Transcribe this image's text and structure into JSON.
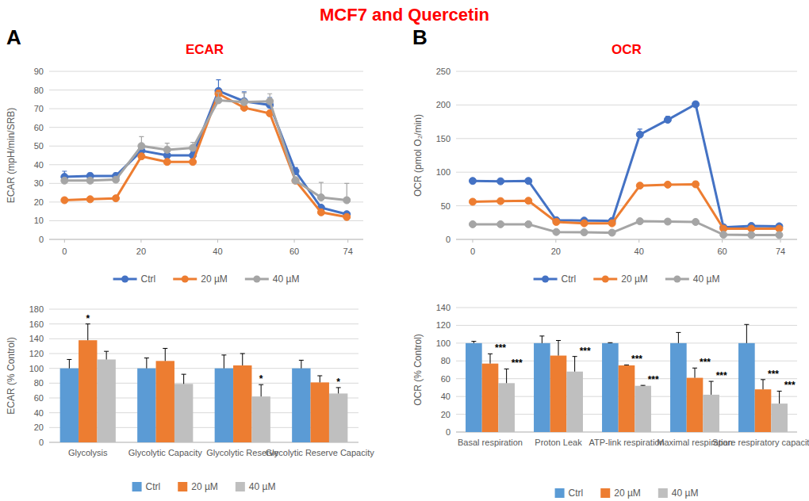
{
  "figure": {
    "title": "MCF7 and Quercetin",
    "panels": [
      {
        "label": "A",
        "title": "ECAR"
      },
      {
        "label": "B",
        "title": "OCR"
      }
    ]
  },
  "chart_data": [
    {
      "type": "line",
      "y_label": "ECAR (mpH/min/SRB)",
      "x": [
        0,
        6.7,
        13.4,
        20.1,
        26.8,
        33.5,
        40.2,
        46.9,
        53.6,
        60.3,
        67,
        73.7
      ],
      "xlim": [
        -4,
        78
      ],
      "xticks": [
        0,
        20,
        40,
        60,
        74
      ],
      "ylim": [
        0,
        90
      ],
      "yticks": [
        0,
        10,
        20,
        30,
        40,
        50,
        60,
        70,
        80,
        90
      ],
      "grid": true,
      "legend": "bottom",
      "marker": "circle",
      "series": [
        {
          "name": "Ctrl",
          "color": "#4472c4",
          "values": [
            33.5,
            34,
            34,
            47.5,
            45,
            45,
            79.5,
            74,
            72,
            36.5,
            17,
            13.5
          ],
          "errors": [
            3,
            1.5,
            1.5,
            2,
            2,
            2,
            6,
            5,
            4,
            2,
            1,
            1
          ]
        },
        {
          "name": "20 µM",
          "color": "#ed7d31",
          "values": [
            21,
            21.5,
            22,
            44.5,
            41.5,
            41.5,
            78,
            70.5,
            67.5,
            31.5,
            14.5,
            12
          ],
          "errors": [
            0.5,
            0.5,
            0.5,
            1,
            1,
            1,
            2,
            1.5,
            1.5,
            1,
            0.5,
            0.5
          ]
        },
        {
          "name": "40 µM",
          "color": "#a5a5a5",
          "values": [
            31.5,
            31.5,
            32,
            50,
            48,
            49,
            74.5,
            73.5,
            74,
            31.5,
            22.5,
            21
          ],
          "errors": [
            1,
            1,
            1,
            5,
            3.5,
            3,
            4,
            5,
            4,
            2,
            8,
            9
          ]
        }
      ]
    },
    {
      "type": "line",
      "y_label": "OCR (pmol O₂/min)",
      "x": [
        0,
        6.7,
        13.4,
        20.1,
        26.8,
        33.5,
        40.2,
        46.9,
        53.6,
        60.3,
        67,
        73.7
      ],
      "xlim": [
        -4,
        78
      ],
      "xticks": [
        0,
        20,
        40,
        60,
        74
      ],
      "ylim": [
        0,
        250
      ],
      "yticks": [
        0,
        50,
        100,
        150,
        200,
        250
      ],
      "grid": true,
      "legend": "bottom",
      "marker": "circle",
      "series": [
        {
          "name": "Ctrl",
          "color": "#4472c4",
          "values": [
            87,
            86.5,
            87,
            28.5,
            28,
            27.5,
            156,
            178,
            201,
            18,
            20,
            19.5
          ],
          "errors": [
            1,
            1,
            1,
            1,
            1,
            1,
            8,
            5,
            3,
            1,
            1,
            1
          ]
        },
        {
          "name": "20 µM",
          "color": "#ed7d31",
          "values": [
            56,
            57,
            57.5,
            26,
            24,
            24,
            80,
            81.5,
            82,
            16,
            16,
            16
          ],
          "errors": [
            1,
            1,
            1,
            1,
            1,
            1,
            4,
            4,
            4,
            1,
            1,
            1
          ]
        },
        {
          "name": "40 µM",
          "color": "#a5a5a5",
          "values": [
            22.5,
            22.5,
            22.5,
            11,
            10.5,
            10,
            27,
            26.5,
            26,
            7,
            6.5,
            6.5
          ],
          "errors": [
            1,
            1,
            1,
            1,
            1,
            1,
            1,
            1,
            1,
            1,
            1,
            1
          ]
        }
      ]
    },
    {
      "type": "bar",
      "y_label": "ECAR (% Control)",
      "categories": [
        "Glycolysis",
        "Glycolytic Capacity",
        "Glycolytic Reserve",
        "Glycolytic Reserve Capacity"
      ],
      "ylim": [
        0,
        180
      ],
      "yticks": [
        0,
        20,
        40,
        60,
        80,
        100,
        120,
        140,
        160,
        180
      ],
      "grid": true,
      "legend": "bottom",
      "series": [
        {
          "name": "Ctrl",
          "color": "#5b9bd5",
          "values": [
            100,
            100,
            100,
            100
          ],
          "errors": [
            12,
            14,
            18,
            11
          ],
          "significance": [
            null,
            null,
            null,
            null
          ]
        },
        {
          "name": "20 µM",
          "color": "#ed7d31",
          "values": [
            138,
            110,
            104,
            81
          ],
          "errors": [
            22,
            17,
            16,
            9
          ],
          "significance": [
            "*",
            null,
            null,
            null
          ]
        },
        {
          "name": "40 µM",
          "color": "#bfbfbf",
          "values": [
            112,
            79,
            62,
            66
          ],
          "errors": [
            11,
            13,
            16,
            8
          ],
          "significance": [
            null,
            null,
            "*",
            "*"
          ]
        }
      ]
    },
    {
      "type": "bar",
      "y_label": "OCR (% Control)",
      "categories": [
        "Basal respiration",
        "Proton Leak",
        "ATP-link respiration",
        "Maximal respiration",
        "Spare respiratory capacity"
      ],
      "ylim": [
        0,
        140
      ],
      "yticks": [
        0,
        20,
        40,
        60,
        80,
        100,
        120,
        140
      ],
      "grid": true,
      "legend": "bottom",
      "series": [
        {
          "name": "Ctrl",
          "color": "#5b9bd5",
          "values": [
            100,
            100,
            100,
            100,
            100
          ],
          "errors": [
            2,
            8,
            0.5,
            12,
            21
          ],
          "significance": [
            null,
            null,
            null,
            null,
            null
          ]
        },
        {
          "name": "20 µM",
          "color": "#ed7d31",
          "values": [
            77,
            86,
            75,
            61,
            48
          ],
          "errors": [
            11,
            17,
            0.5,
            11,
            11
          ],
          "significance": [
            "***",
            null,
            "***",
            "***",
            "***"
          ]
        },
        {
          "name": "40 µM",
          "color": "#bfbfbf",
          "values": [
            55,
            68,
            52,
            42,
            32
          ],
          "errors": [
            16,
            17,
            0.5,
            15,
            14
          ],
          "significance": [
            "***",
            "***",
            "***",
            "***",
            "***"
          ]
        }
      ]
    }
  ]
}
